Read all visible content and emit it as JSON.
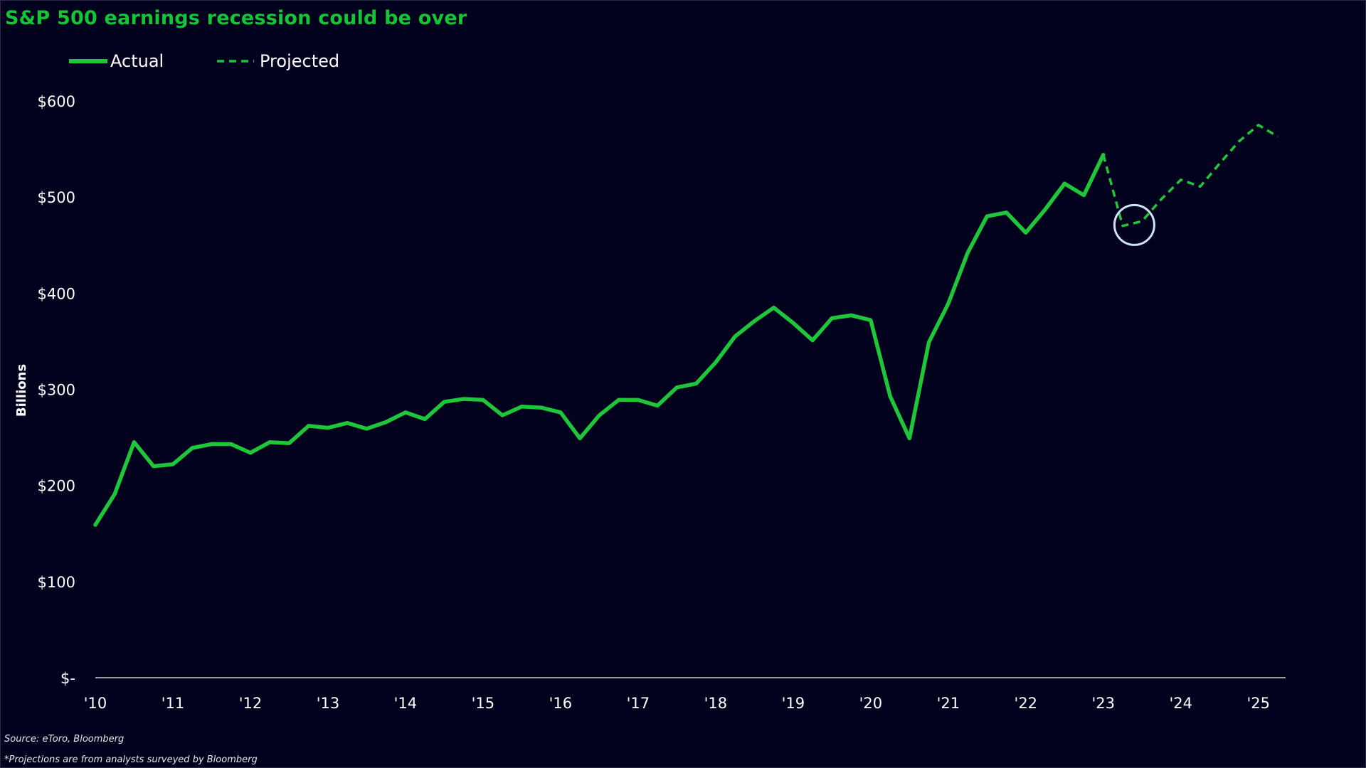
{
  "title": "S&P 500 earnings recession could be over",
  "source": "Source: eToro, Bloomberg",
  "note": "*Projections are from analysts surveyed by Bloomberg",
  "colors": {
    "background": "#02021e",
    "title": "#13c636",
    "actual_line": "#1ec63a",
    "projected_line": "#1ec63a",
    "highlight_circle": "#cfe3f5",
    "axis": "#cccccc",
    "text": "#ffffff"
  },
  "chart_data": {
    "type": "line",
    "title": "S&P 500 earnings recession could be over",
    "xlabel": "",
    "ylabel": "Billions",
    "ylim": [
      0,
      600
    ],
    "xlim": [
      2010.0,
      2025.25
    ],
    "y_ticks": [
      {
        "value": 0,
        "label": "$-"
      },
      {
        "value": 100,
        "label": "$100"
      },
      {
        "value": 200,
        "label": "$200"
      },
      {
        "value": 300,
        "label": "$300"
      },
      {
        "value": 400,
        "label": "$400"
      },
      {
        "value": 500,
        "label": "$500"
      },
      {
        "value": 600,
        "label": "$600"
      }
    ],
    "x_ticks": [
      {
        "value": 2010,
        "label": "'10"
      },
      {
        "value": 2011,
        "label": "'11"
      },
      {
        "value": 2012,
        "label": "'12"
      },
      {
        "value": 2013,
        "label": "'13"
      },
      {
        "value": 2014,
        "label": "'14"
      },
      {
        "value": 2015,
        "label": "'15"
      },
      {
        "value": 2016,
        "label": "'16"
      },
      {
        "value": 2017,
        "label": "'17"
      },
      {
        "value": 2018,
        "label": "'18"
      },
      {
        "value": 2019,
        "label": "'19"
      },
      {
        "value": 2020,
        "label": "'20"
      },
      {
        "value": 2021,
        "label": "'21"
      },
      {
        "value": 2022,
        "label": "'22"
      },
      {
        "value": 2023,
        "label": "'23"
      },
      {
        "value": 2024,
        "label": "'24"
      },
      {
        "value": 2025,
        "label": "'25"
      }
    ],
    "grid": false,
    "legend_position": "top-left",
    "series": [
      {
        "name": "Actual",
        "style": "solid",
        "x": [
          2010.0,
          2010.25,
          2010.5,
          2010.75,
          2011.0,
          2011.25,
          2011.5,
          2011.75,
          2012.0,
          2012.25,
          2012.5,
          2012.75,
          2013.0,
          2013.25,
          2013.5,
          2013.75,
          2014.0,
          2014.25,
          2014.5,
          2014.75,
          2015.0,
          2015.25,
          2015.5,
          2015.75,
          2016.0,
          2016.25,
          2016.5,
          2016.75,
          2017.0,
          2017.25,
          2017.5,
          2017.75,
          2018.0,
          2018.25,
          2018.5,
          2018.75,
          2019.0,
          2019.25,
          2019.5,
          2019.75,
          2020.0,
          2020.25,
          2020.5,
          2020.75,
          2021.0,
          2021.25,
          2021.5,
          2021.75,
          2022.0,
          2022.25,
          2022.5,
          2022.75,
          2023.0
        ],
        "values": [
          159,
          191,
          245,
          220,
          222,
          239,
          243,
          243,
          234,
          245,
          244,
          262,
          260,
          265,
          259,
          266,
          276,
          269,
          287,
          290,
          289,
          273,
          282,
          281,
          276,
          249,
          273,
          289,
          289,
          283,
          302,
          306,
          328,
          355,
          371,
          385,
          369,
          351,
          374,
          377,
          372,
          293,
          249,
          349,
          389,
          442,
          480,
          484,
          463,
          487,
          514,
          502,
          544
        ]
      },
      {
        "name": "Projected",
        "style": "dashed",
        "x": [
          2023.0,
          2023.25,
          2023.5,
          2023.75,
          2024.0,
          2024.25,
          2024.5,
          2024.75,
          2025.0,
          2025.25
        ],
        "values": [
          544,
          470,
          475,
          498,
          518,
          511,
          535,
          558,
          575,
          563
        ]
      }
    ],
    "annotations": [
      {
        "type": "circle",
        "x": 2023.4,
        "y": 471
      }
    ]
  }
}
